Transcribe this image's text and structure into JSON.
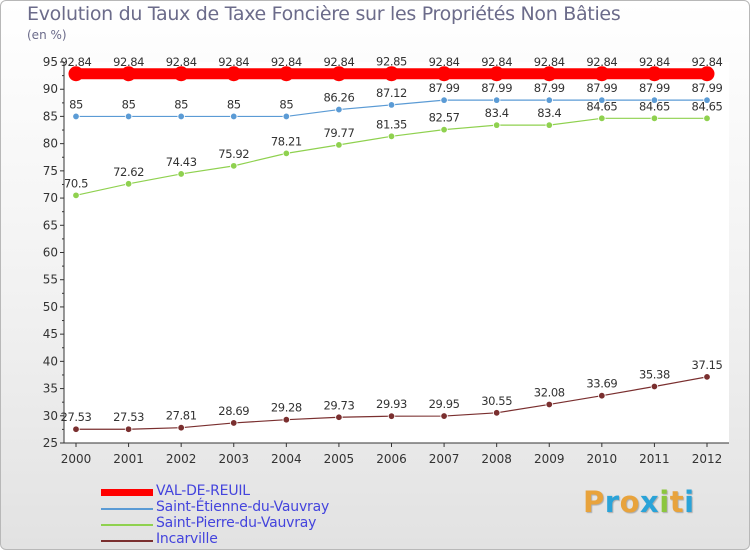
{
  "header": {
    "title": "Evolution du Taux de Taxe Foncière sur les Propriétés Non Bâties",
    "unit": "(en %)"
  },
  "brand": {
    "text": "Proxiti",
    "colors": [
      "#e8a33c",
      "#2aa3d8",
      "#e8a33c",
      "#2aa3d8",
      "#8cc63f",
      "#e8a33c",
      "#2aa3d8"
    ]
  },
  "chart_data": {
    "type": "line",
    "title": "Evolution du Taux de Taxe Foncière sur les Propriétés Non Bâties",
    "ylabel": "(en %)",
    "xlabel": "",
    "ylim": [
      25,
      95
    ],
    "yticks": [
      25,
      30,
      35,
      40,
      45,
      50,
      55,
      60,
      65,
      70,
      75,
      80,
      85,
      90,
      95
    ],
    "grid": false,
    "legend_position": "bottom-left",
    "categories": [
      "2000",
      "2001",
      "2002",
      "2003",
      "2004",
      "2005",
      "2006",
      "2007",
      "2008",
      "2009",
      "2010",
      "2011",
      "2012"
    ],
    "series": [
      {
        "name": "VAL-DE-REUIL",
        "color": "#ff0000",
        "values": [
          92.84,
          92.84,
          92.84,
          92.84,
          92.84,
          92.84,
          92.85,
          92.84,
          92.84,
          92.84,
          92.84,
          92.84,
          92.84
        ],
        "labels": [
          "92.84",
          "92.84",
          "92.84",
          "92.84",
          "92.84",
          "92.84",
          "92.85",
          "92.84",
          "92.84",
          "92.84",
          "92.84",
          "92.84",
          "92.84"
        ]
      },
      {
        "name": "Saint-Étienne-du-Vauvray",
        "color": "#5b9bd5",
        "values": [
          85,
          85,
          85,
          85,
          85,
          86.26,
          87.12,
          87.99,
          87.99,
          87.99,
          87.99,
          87.99,
          87.99
        ],
        "labels": [
          "85",
          "85",
          "85",
          "85",
          "85",
          "86.26",
          "87.12",
          "87.99",
          "87.99",
          "87.99",
          "87.99",
          "87.99",
          "87.99"
        ]
      },
      {
        "name": "Saint-Pierre-du-Vauvray",
        "color": "#8fd14f",
        "values": [
          70.5,
          72.62,
          74.43,
          75.92,
          78.21,
          79.77,
          81.35,
          82.57,
          83.4,
          83.4,
          84.65,
          84.65,
          84.65
        ],
        "labels": [
          "70.5",
          "72.62",
          "74.43",
          "75.92",
          "78.21",
          "79.77",
          "81.35",
          "82.57",
          "83.4",
          "83.4",
          "84.65",
          "84.65",
          "84.65"
        ]
      },
      {
        "name": "Incarville",
        "color": "#7a2f2f",
        "values": [
          27.53,
          27.53,
          27.81,
          28.69,
          29.28,
          29.73,
          29.93,
          29.95,
          30.55,
          32.08,
          33.69,
          35.38,
          37.15
        ],
        "labels": [
          "27.53",
          "27.53",
          "27.81",
          "28.69",
          "29.28",
          "29.73",
          "29.93",
          "29.95",
          "30.55",
          "32.08",
          "33.69",
          "35.38",
          "37.15"
        ]
      }
    ]
  }
}
